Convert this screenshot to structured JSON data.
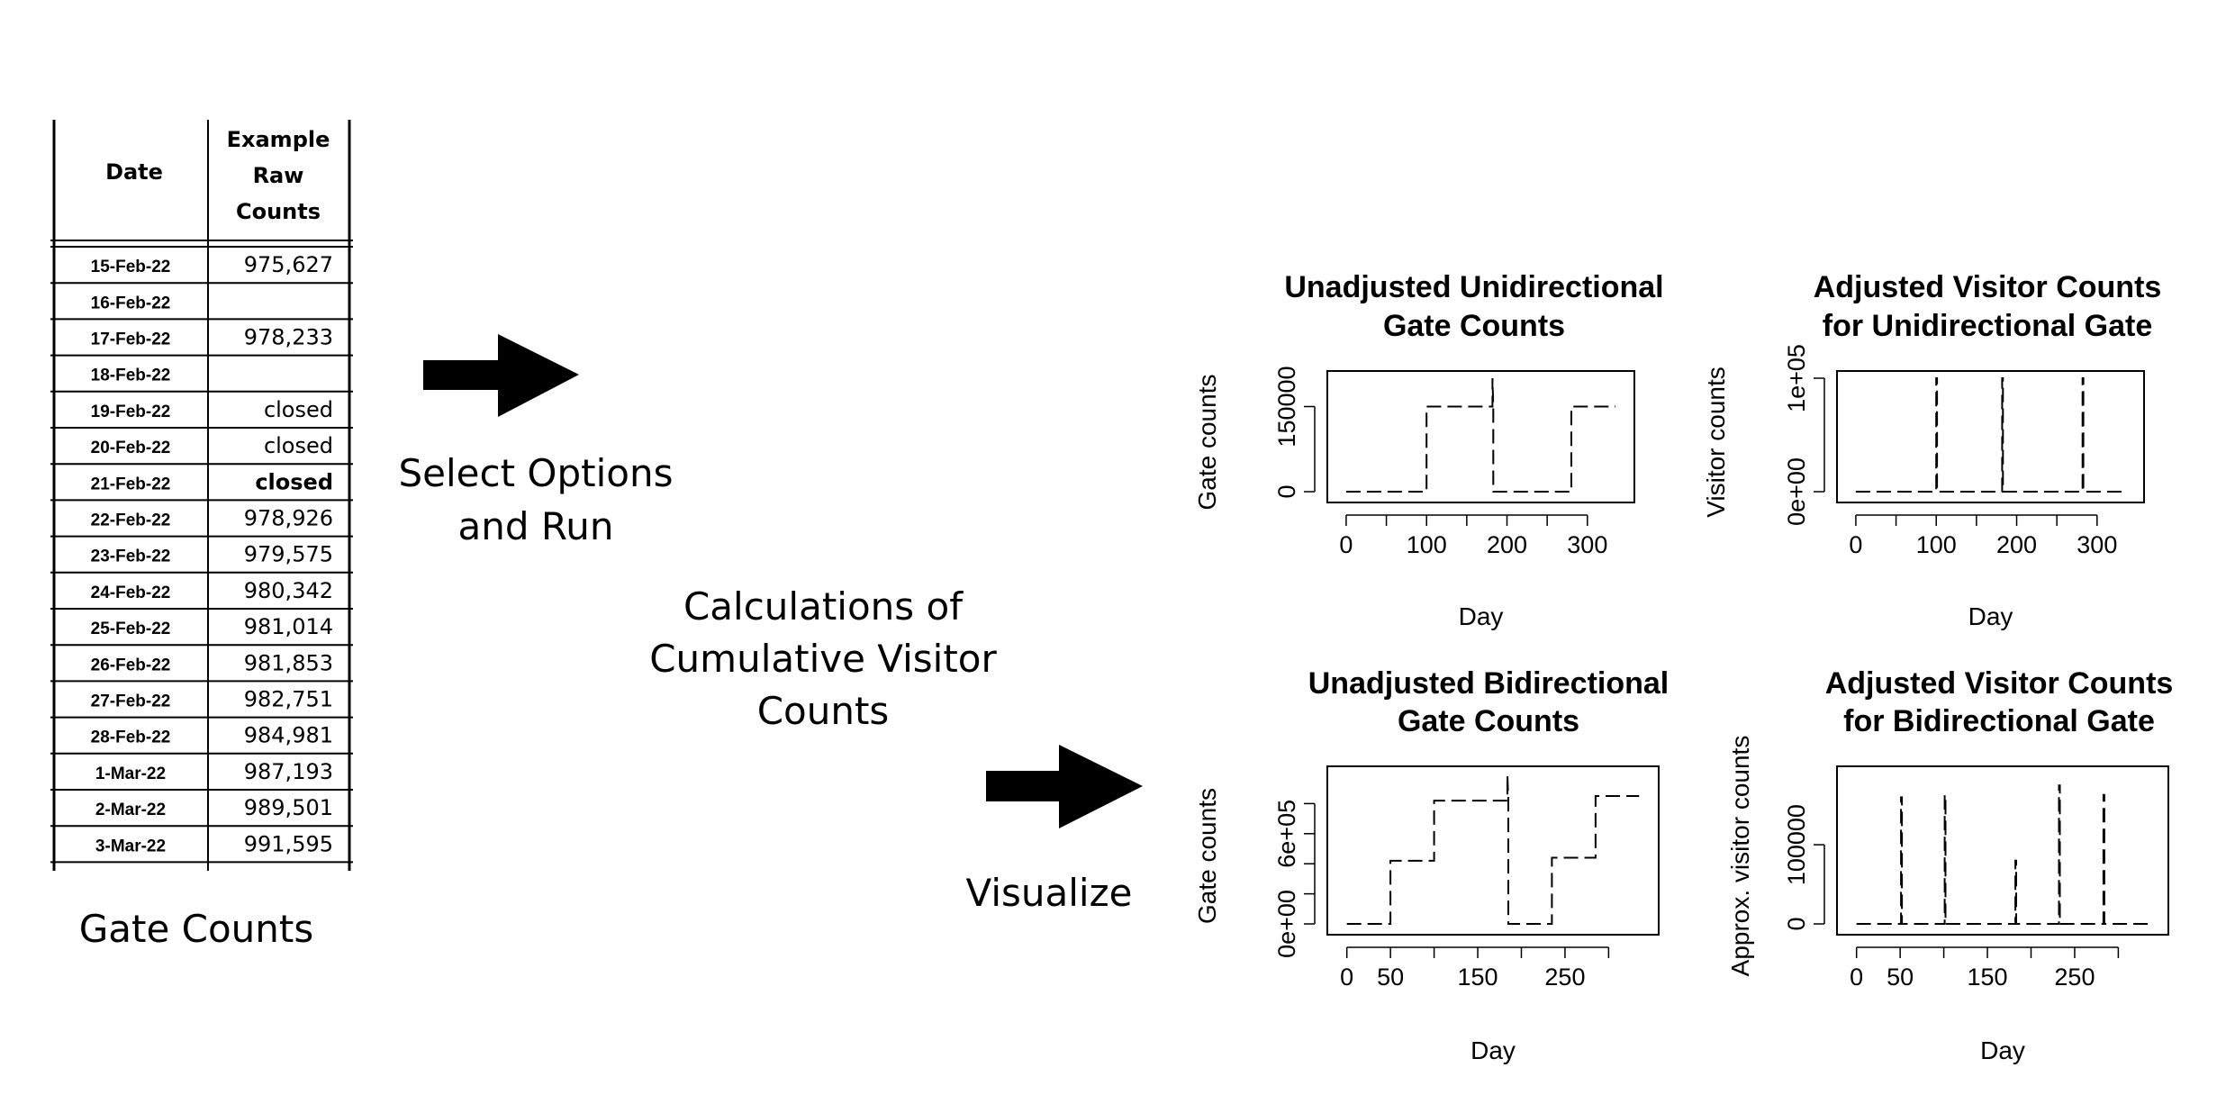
{
  "table": {
    "header_date": "Date",
    "header_counts_lines": [
      "Example",
      "Raw",
      "Counts"
    ],
    "rows": [
      {
        "date": "15-Feb-22",
        "value": "975,627",
        "bold": false
      },
      {
        "date": "16-Feb-22",
        "value": "",
        "bold": false
      },
      {
        "date": "17-Feb-22",
        "value": "978,233",
        "bold": false
      },
      {
        "date": "18-Feb-22",
        "value": "",
        "bold": false
      },
      {
        "date": "19-Feb-22",
        "value": "closed",
        "bold": false
      },
      {
        "date": "20-Feb-22",
        "value": "closed",
        "bold": false
      },
      {
        "date": "21-Feb-22",
        "value": "closed",
        "bold": true
      },
      {
        "date": "22-Feb-22",
        "value": "978,926",
        "bold": false
      },
      {
        "date": "23-Feb-22",
        "value": "979,575",
        "bold": false
      },
      {
        "date": "24-Feb-22",
        "value": "980,342",
        "bold": false
      },
      {
        "date": "25-Feb-22",
        "value": "981,014",
        "bold": false
      },
      {
        "date": "26-Feb-22",
        "value": "981,853",
        "bold": false
      },
      {
        "date": "27-Feb-22",
        "value": "982,751",
        "bold": false
      },
      {
        "date": "28-Feb-22",
        "value": "984,981",
        "bold": false
      },
      {
        "date": "1-Mar-22",
        "value": "987,193",
        "bold": false
      },
      {
        "date": "2-Mar-22",
        "value": "989,501",
        "bold": false
      },
      {
        "date": "3-Mar-22",
        "value": "991,595",
        "bold": false
      }
    ],
    "caption": "Gate Counts"
  },
  "steps": {
    "select_lines": [
      "Select Options",
      "and Run"
    ],
    "calc_lines": [
      "Calculations of",
      "Cumulative Visitor",
      "Counts"
    ],
    "visualize": "Visualize"
  },
  "chart_data": [
    {
      "type": "line",
      "title_lines": [
        "Unadjusted Unidirectional",
        "Gate Counts"
      ],
      "xlabel": "Day",
      "ylabel": "Gate counts",
      "xticks": [
        0,
        100,
        200,
        300
      ],
      "xminor": [
        50,
        150,
        250
      ],
      "yticks": [
        0,
        150000
      ],
      "ytick_labels": [
        "0",
        "150000"
      ],
      "ylim": [
        0,
        200000
      ],
      "xlim": [
        -10,
        345
      ],
      "series": [
        {
          "x": [
            0,
            100,
            100,
            182,
            182,
            183,
            183,
            280,
            280,
            335
          ],
          "y": [
            0,
            0,
            150000,
            150000,
            200000,
            150000,
            0,
            0,
            150000,
            150000
          ]
        }
      ]
    },
    {
      "type": "line",
      "title_lines": [
        "Adjusted Visitor Counts",
        "for Unidirectional Gate"
      ],
      "xlabel": "Day",
      "ylabel": "Visitor counts",
      "xticks": [
        0,
        100,
        200,
        300
      ],
      "xminor": [
        50,
        150,
        250
      ],
      "yticks": [
        0,
        100000
      ],
      "ytick_labels": [
        "0e+00",
        "1e+05"
      ],
      "ylim": [
        0,
        100000
      ],
      "xlim": [
        -10,
        345
      ],
      "series": [
        {
          "x": [
            0,
            100,
            100,
            101,
            101,
            182,
            182,
            183,
            183,
            282,
            282,
            283,
            283,
            335
          ],
          "y": [
            0,
            0,
            100000,
            100000,
            0,
            0,
            100000,
            100000,
            0,
            0,
            100000,
            100000,
            0,
            0
          ]
        }
      ]
    },
    {
      "type": "line",
      "title_lines": [
        "Unadjusted Bidirectional",
        "Gate Counts"
      ],
      "xlabel": "Day",
      "ylabel": "Gate counts",
      "xticks": [
        0,
        50,
        150,
        250
      ],
      "xminor": [
        100,
        200,
        300
      ],
      "yticks": [
        0,
        200000,
        400000,
        600000,
        800000
      ],
      "ytick_labels": [
        "0e+00",
        "",
        "",
        "6e+05",
        ""
      ],
      "ylim": [
        0,
        1000000
      ],
      "xlim": [
        -10,
        345
      ],
      "series": [
        {
          "x": [
            0,
            50,
            50,
            100,
            100,
            184,
            184,
            185,
            185,
            235,
            235,
            285,
            285,
            335
          ],
          "y": [
            0,
            0,
            420000,
            420000,
            820000,
            820000,
            990000,
            820000,
            0,
            0,
            440000,
            440000,
            850000,
            850000
          ]
        }
      ]
    },
    {
      "type": "line",
      "title_lines": [
        "Adjusted Visitor Counts",
        "for Bidirectional Gate"
      ],
      "xlabel": "Day",
      "ylabel": "Approx. visitor counts",
      "xticks": [
        0,
        50,
        150,
        250
      ],
      "xminor": [
        100,
        200,
        300
      ],
      "yticks": [
        0,
        100000
      ],
      "ytick_labels": [
        "0",
        "100000"
      ],
      "ylim": [
        0,
        190000
      ],
      "xlim": [
        -10,
        345
      ],
      "series": [
        {
          "x": [
            0,
            51,
            51,
            52,
            52,
            101,
            101,
            102,
            102,
            182,
            182,
            183,
            183,
            232,
            232,
            233,
            233,
            283,
            283,
            284,
            284,
            335
          ],
          "y": [
            0,
            0,
            160000,
            160000,
            0,
            0,
            163000,
            163000,
            0,
            0,
            80000,
            80000,
            0,
            0,
            175000,
            175000,
            0,
            0,
            163000,
            163000,
            0,
            0
          ]
        }
      ]
    }
  ]
}
